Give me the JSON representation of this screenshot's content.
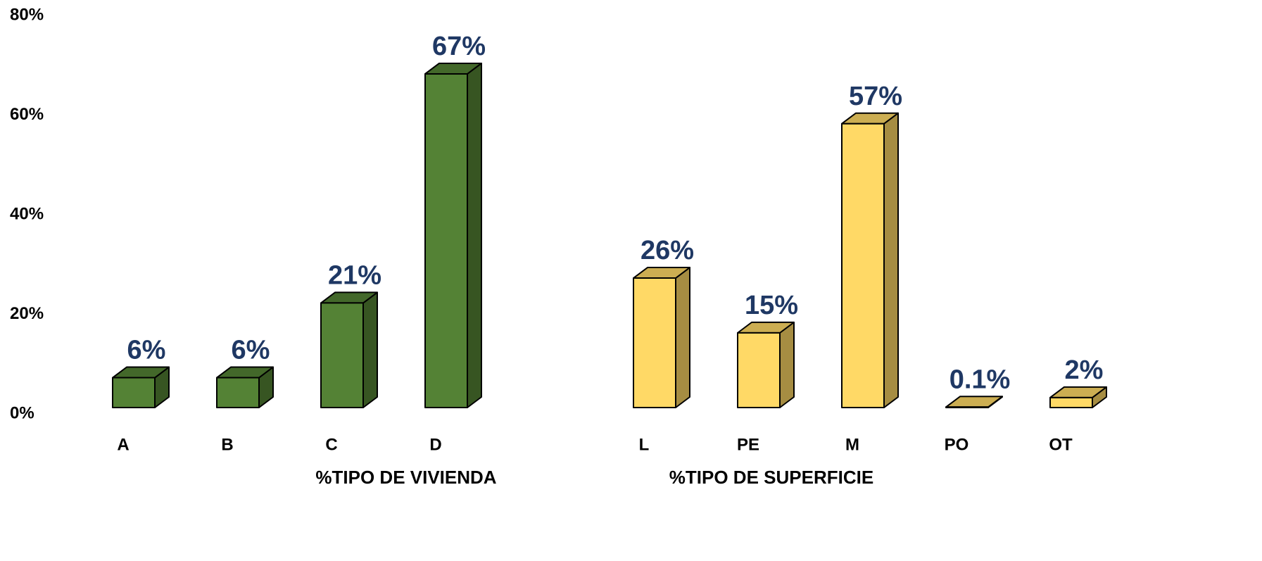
{
  "chart_data": {
    "type": "bar3d",
    "categories": [
      "A",
      "B",
      "C",
      "D",
      null,
      "L",
      "PE",
      "M",
      "PO",
      "OT"
    ],
    "series": [
      {
        "name": "%TIPO DE VIVIENDA",
        "color": "#548235",
        "values": [
          6,
          6,
          21,
          67,
          null,
          null,
          null,
          null,
          null,
          null
        ],
        "value_labels": [
          "6%",
          "6%",
          "21%",
          "67%",
          null,
          null,
          null,
          null,
          null,
          null
        ]
      },
      {
        "name": "%TIPO DE SUPERFICIE",
        "color": "#ffd966",
        "values": [
          null,
          null,
          null,
          null,
          null,
          26,
          15,
          57,
          0.1,
          2
        ],
        "value_labels": [
          null,
          null,
          null,
          null,
          null,
          "26%",
          "15%",
          "57%",
          "0.1%",
          "2%"
        ]
      }
    ],
    "ylim": [
      0,
      80
    ],
    "yticks": [
      {
        "value": 0,
        "label": "0%"
      },
      {
        "value": 20,
        "label": "20%"
      },
      {
        "value": 40,
        "label": "40%"
      },
      {
        "value": 60,
        "label": "60%"
      },
      {
        "value": 80,
        "label": "80%"
      }
    ],
    "grid": false
  }
}
